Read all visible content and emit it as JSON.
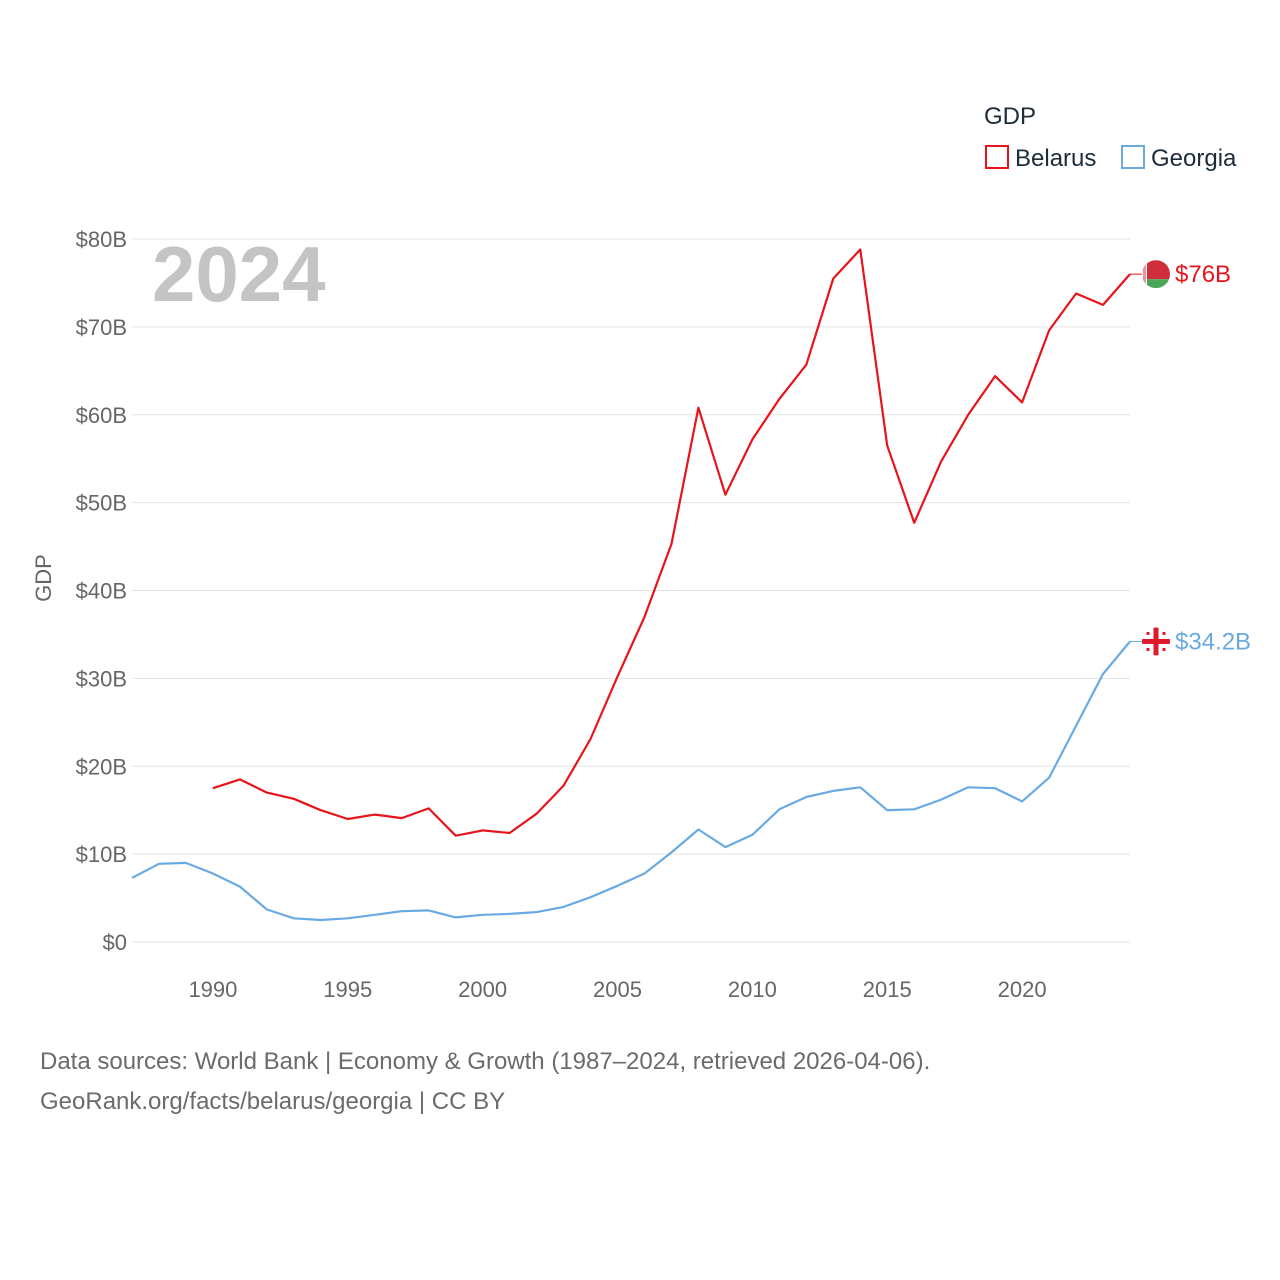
{
  "chart_data": {
    "type": "line",
    "legend_title": "GDP",
    "ylabel": "GDP",
    "year_label": "2024",
    "ylim": [
      0,
      80
    ],
    "xlim": [
      1987,
      2024
    ],
    "y_ticks": [
      {
        "value": 0,
        "label": "$0"
      },
      {
        "value": 10,
        "label": "$10B"
      },
      {
        "value": 20,
        "label": "$20B"
      },
      {
        "value": 30,
        "label": "$30B"
      },
      {
        "value": 40,
        "label": "$40B"
      },
      {
        "value": 50,
        "label": "$50B"
      },
      {
        "value": 60,
        "label": "$60B"
      },
      {
        "value": 70,
        "label": "$70B"
      },
      {
        "value": 80,
        "label": "$80B"
      }
    ],
    "x_ticks": [
      1990,
      1995,
      2000,
      2005,
      2010,
      2015,
      2020
    ],
    "series": [
      {
        "name": "Belarus",
        "color": "#e8141c",
        "end_label": "$76B",
        "flag": "belarus",
        "x": [
          1990,
          1991,
          1992,
          1993,
          1994,
          1995,
          1996,
          1997,
          1998,
          1999,
          2000,
          2001,
          2002,
          2003,
          2004,
          2005,
          2006,
          2007,
          2008,
          2009,
          2010,
          2011,
          2012,
          2013,
          2014,
          2015,
          2016,
          2017,
          2018,
          2019,
          2020,
          2021,
          2022,
          2023,
          2024
        ],
        "values": [
          17.5,
          18.5,
          17.0,
          16.3,
          15.0,
          14.0,
          14.5,
          14.1,
          15.2,
          12.1,
          12.7,
          12.4,
          14.6,
          17.8,
          23.1,
          30.2,
          37.0,
          45.3,
          60.8,
          50.9,
          57.2,
          61.8,
          65.7,
          75.5,
          78.8,
          56.5,
          47.7,
          54.7,
          60.0,
          64.4,
          61.4,
          69.6,
          73.8,
          72.5,
          76.0
        ]
      },
      {
        "name": "Georgia",
        "color": "#6aaae3",
        "end_label": "$34.2B",
        "flag": "georgia",
        "x": [
          1987,
          1988,
          1989,
          1990,
          1991,
          1992,
          1993,
          1994,
          1995,
          1996,
          1997,
          1998,
          1999,
          2000,
          2001,
          2002,
          2003,
          2004,
          2005,
          2006,
          2007,
          2008,
          2009,
          2010,
          2011,
          2012,
          2013,
          2014,
          2015,
          2016,
          2017,
          2018,
          2019,
          2020,
          2021,
          2022,
          2023,
          2024
        ],
        "values": [
          7.3,
          8.9,
          9.0,
          7.8,
          6.3,
          3.7,
          2.7,
          2.5,
          2.7,
          3.1,
          3.5,
          3.6,
          2.8,
          3.1,
          3.2,
          3.4,
          4.0,
          5.1,
          6.4,
          7.8,
          10.2,
          12.8,
          10.8,
          12.2,
          15.1,
          16.5,
          17.2,
          17.6,
          15.0,
          15.1,
          16.2,
          17.6,
          17.5,
          16.0,
          18.7,
          24.6,
          30.5,
          34.2
        ]
      }
    ]
  },
  "footer": {
    "line1": "Data sources: World Bank | Economy & Growth (1987–2024, retrieved 2026-04-06).",
    "line2": "GeoRank.org/facts/belarus/georgia | CC BY"
  }
}
